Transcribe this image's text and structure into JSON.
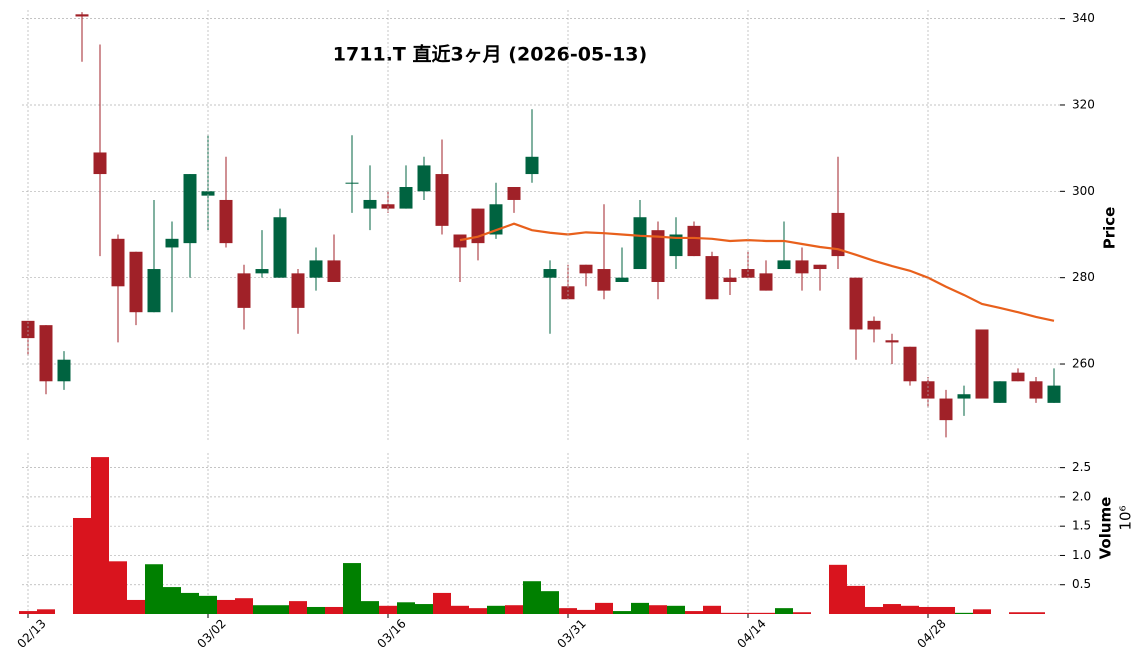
{
  "chart_data": [
    {
      "type": "candlestick",
      "title": "1711.T  直近3ヶ月  (2026-05-13)",
      "y_label": "Price",
      "open": [
        270,
        269,
        256,
        341,
        309,
        289,
        286,
        272,
        287,
        288,
        299,
        298,
        281,
        281,
        280,
        281,
        280,
        284,
        302,
        296,
        297,
        296,
        300,
        304,
        290,
        296,
        290,
        301,
        304,
        280,
        278,
        283,
        282,
        279,
        282,
        291,
        285,
        292,
        285,
        280,
        282,
        281,
        282,
        284,
        283,
        295,
        280,
        270,
        265.5,
        264,
        256,
        252,
        252,
        268,
        251,
        258,
        256,
        251
      ],
      "high": [
        270,
        269,
        263,
        341.5,
        334,
        290,
        286,
        298,
        293,
        304,
        313,
        308,
        283,
        291,
        296,
        282,
        287,
        290,
        313,
        306,
        300,
        306,
        308,
        312,
        290,
        296,
        302,
        301,
        319,
        284,
        283,
        283,
        297,
        287,
        298,
        293,
        294,
        293,
        286,
        282,
        286,
        284,
        293,
        287,
        283,
        308,
        280,
        271,
        267,
        264,
        257,
        254,
        255,
        268,
        256,
        259,
        257,
        259
      ],
      "low": [
        262,
        253,
        254,
        330,
        285,
        265,
        269,
        272,
        272,
        280,
        291,
        287,
        268,
        280,
        280,
        267,
        277,
        279,
        295,
        291,
        295,
        296,
        298,
        290,
        279,
        284,
        289,
        295,
        302,
        267,
        275,
        278,
        275,
        279,
        282,
        275,
        282,
        285,
        275,
        276,
        280,
        277,
        282,
        277,
        277,
        282,
        261,
        265,
        260,
        255,
        250,
        243,
        248,
        252,
        251,
        256,
        251,
        251
      ],
      "close": [
        266,
        256,
        261,
        340.5,
        304,
        278,
        272,
        282,
        289,
        304,
        300,
        288,
        273,
        282,
        294,
        273,
        284,
        279,
        302,
        298,
        296,
        301,
        306,
        292,
        287,
        288,
        297,
        298,
        308,
        282,
        275,
        281,
        277,
        280,
        294,
        279,
        290,
        285,
        275,
        279,
        280,
        277,
        284,
        281,
        282,
        285,
        268,
        268,
        265,
        256,
        252,
        247,
        253,
        252,
        256,
        256,
        252,
        255
      ],
      "up_color": "#006340",
      "down_color": "#a02128",
      "ma": {
        "color": "#e8601c",
        "values": [
          null,
          null,
          null,
          null,
          null,
          null,
          null,
          null,
          null,
          null,
          null,
          null,
          null,
          null,
          null,
          null,
          null,
          null,
          null,
          null,
          null,
          null,
          null,
          null,
          288.7,
          289.5,
          291,
          292.5,
          291,
          290.4,
          290,
          290.5,
          290.3,
          290,
          289.7,
          289.5,
          289.2,
          289.2,
          289,
          288.5,
          288.7,
          288.5,
          288.5,
          287.8,
          287.1,
          286.6,
          285.3,
          283.9,
          282.7,
          281.6,
          280,
          277.9,
          276,
          273.9,
          273,
          272,
          270.9,
          270
        ]
      },
      "ylim": [
        242.4,
        342
      ],
      "yticks": [
        260,
        280,
        300,
        320,
        340
      ],
      "grid": true
    },
    {
      "type": "bar",
      "y_label": "Volume",
      "multiplier": "10⁶",
      "categories": [
        "02/13",
        null,
        null,
        null,
        null,
        null,
        null,
        null,
        null,
        null,
        "03/02",
        null,
        null,
        null,
        null,
        null,
        null,
        null,
        null,
        null,
        "03/16",
        null,
        null,
        null,
        null,
        null,
        null,
        null,
        null,
        null,
        "03/31",
        null,
        null,
        null,
        null,
        null,
        null,
        null,
        null,
        null,
        "04/14",
        null,
        null,
        null,
        null,
        null,
        null,
        null,
        null,
        null,
        "04/28",
        null,
        null,
        null,
        null,
        null,
        null,
        null
      ],
      "values": [
        0.05,
        0.08,
        0,
        1.64,
        2.68,
        0.9,
        0.24,
        0.85,
        0.46,
        0.36,
        0.31,
        0.24,
        0.27,
        0.15,
        0.15,
        0.22,
        0.12,
        0.12,
        0.87,
        0.22,
        0.14,
        0.2,
        0.17,
        0.36,
        0.14,
        0.1,
        0.14,
        0.15,
        0.56,
        0.39,
        0.1,
        0.07,
        0.19,
        0.05,
        0.19,
        0.15,
        0.14,
        0.05,
        0.14,
        0.02,
        0.02,
        0.02,
        0.1,
        0.03,
        0,
        0.84,
        0.48,
        0.12,
        0.17,
        0.14,
        0.12,
        0.12,
        0.02,
        0.08,
        0,
        0.03,
        0.03,
        0
      ],
      "up_color": "#008000",
      "down_color": "#d9141e",
      "ylim": [
        0,
        2.75
      ],
      "yticks": [
        0.5,
        {
          "value": 1.0,
          "label": "1.0"
        },
        1.5,
        {
          "value": 2.0,
          "label": "2.0"
        },
        2.5
      ],
      "grid": true
    }
  ]
}
